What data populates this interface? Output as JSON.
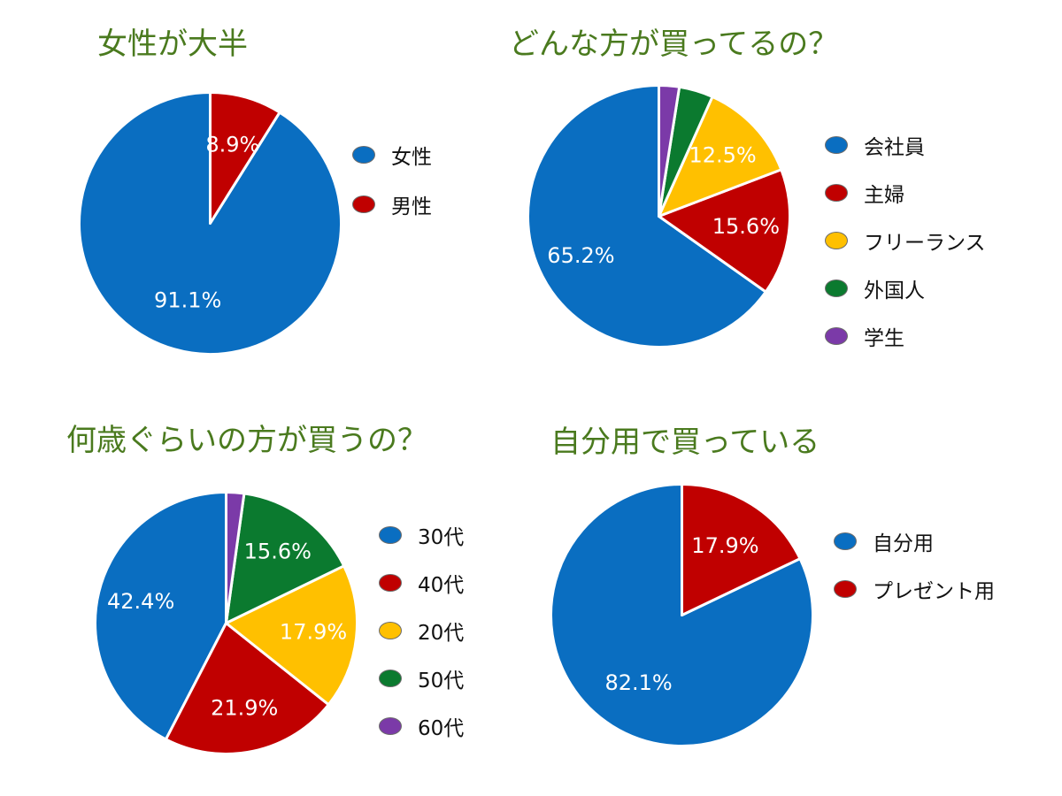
{
  "chart_data": [
    {
      "type": "pie",
      "title": "女性が大半",
      "slices": [
        {
          "label": "女性",
          "value": 91.1,
          "display": "91.1%",
          "color": "#0a6ec1"
        },
        {
          "label": "男性",
          "value": 8.9,
          "display": "8.9%",
          "color": "#c00000"
        }
      ],
      "legend_position": "right"
    },
    {
      "type": "pie",
      "title": "どんな方が買ってるの？",
      "slices": [
        {
          "label": "会社員",
          "value": 65.2,
          "display": "65.2%",
          "color": "#0a6ec1"
        },
        {
          "label": "主婦",
          "value": 15.6,
          "display": "15.6%",
          "color": "#c00000"
        },
        {
          "label": "フリーランス",
          "value": 12.5,
          "display": "12.5%",
          "color": "#ffc000"
        },
        {
          "label": "外国人",
          "value": 4.2,
          "display": "",
          "color": "#0b7a2f"
        },
        {
          "label": "学生",
          "value": 2.5,
          "display": "",
          "color": "#7b3aa8"
        }
      ],
      "legend_position": "right"
    },
    {
      "type": "pie",
      "title": "何歳ぐらいの方が買うの？",
      "slices": [
        {
          "label": "30代",
          "value": 42.4,
          "display": "42.4%",
          "color": "#0a6ec1"
        },
        {
          "label": "40代",
          "value": 21.9,
          "display": "21.9%",
          "color": "#c00000"
        },
        {
          "label": "20代",
          "value": 17.9,
          "display": "17.9%",
          "color": "#ffc000"
        },
        {
          "label": "50代",
          "value": 15.6,
          "display": "15.6%",
          "color": "#0b7a2f"
        },
        {
          "label": "60代",
          "value": 2.2,
          "display": "",
          "color": "#7b3aa8"
        }
      ],
      "legend_position": "right"
    },
    {
      "type": "pie",
      "title": "自分用で買っている",
      "slices": [
        {
          "label": "自分用",
          "value": 82.1,
          "display": "82.1%",
          "color": "#0a6ec1"
        },
        {
          "label": "プレゼント用",
          "value": 17.9,
          "display": "17.9%",
          "color": "#c00000"
        }
      ],
      "legend_position": "right"
    }
  ]
}
